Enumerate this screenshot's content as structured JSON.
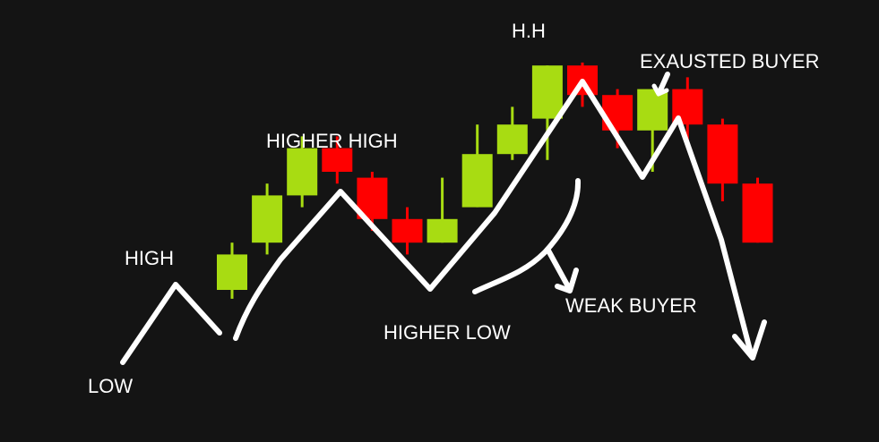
{
  "colors": {
    "background": "#141414",
    "bullish": "#a8dc12",
    "bearish": "#ff0000",
    "annotation": "#ffffff"
  },
  "labels": {
    "low": "LOW",
    "high": "HIGH",
    "higher_high": "HIGHER HIGH",
    "higher_low": "HIGHER LOW",
    "hh": "H.H",
    "weak_buyer": "WEAK BUYER",
    "exausted_buyer": "EXAUSTED BUYER"
  },
  "chart_data": {
    "type": "candlestick",
    "grid": false,
    "axes_visible": false,
    "candles": [
      {
        "index": 1,
        "open": 2.0,
        "close": 3.2,
        "high": 3.6,
        "low": 1.7,
        "direction": "up"
      },
      {
        "index": 2,
        "open": 3.6,
        "close": 5.2,
        "high": 5.6,
        "low": 3.2,
        "direction": "up"
      },
      {
        "index": 3,
        "open": 5.2,
        "close": 6.8,
        "high": 7.2,
        "low": 4.8,
        "direction": "up"
      },
      {
        "index": 4,
        "open": 6.8,
        "close": 6.0,
        "high": 7.2,
        "low": 5.6,
        "direction": "down"
      },
      {
        "index": 5,
        "open": 5.8,
        "close": 4.4,
        "high": 6.0,
        "low": 4.0,
        "direction": "down"
      },
      {
        "index": 6,
        "open": 4.4,
        "close": 3.6,
        "high": 4.8,
        "low": 3.2,
        "direction": "down"
      },
      {
        "index": 7,
        "open": 3.6,
        "close": 4.4,
        "high": 5.8,
        "low": 3.6,
        "direction": "up"
      },
      {
        "index": 8,
        "open": 4.8,
        "close": 6.6,
        "high": 7.6,
        "low": 4.8,
        "direction": "up"
      },
      {
        "index": 9,
        "open": 6.6,
        "close": 7.6,
        "high": 8.2,
        "low": 6.4,
        "direction": "up"
      },
      {
        "index": 10,
        "open": 7.8,
        "close": 9.6,
        "high": 9.6,
        "low": 6.4,
        "direction": "up"
      },
      {
        "index": 11,
        "open": 9.6,
        "close": 8.6,
        "high": 9.7,
        "low": 8.2,
        "direction": "down"
      },
      {
        "index": 12,
        "open": 8.6,
        "close": 7.4,
        "high": 8.8,
        "low": 6.8,
        "direction": "down"
      },
      {
        "index": 13,
        "open": 7.4,
        "close": 8.8,
        "high": 8.8,
        "low": 6.0,
        "direction": "up"
      },
      {
        "index": 14,
        "open": 8.8,
        "close": 7.6,
        "high": 9.2,
        "low": 6.8,
        "direction": "down"
      },
      {
        "index": 15,
        "open": 7.6,
        "close": 5.6,
        "high": 7.8,
        "low": 5.0,
        "direction": "down"
      },
      {
        "index": 16,
        "open": 5.6,
        "close": 3.6,
        "high": 5.8,
        "low": 3.6,
        "direction": "down"
      }
    ]
  }
}
